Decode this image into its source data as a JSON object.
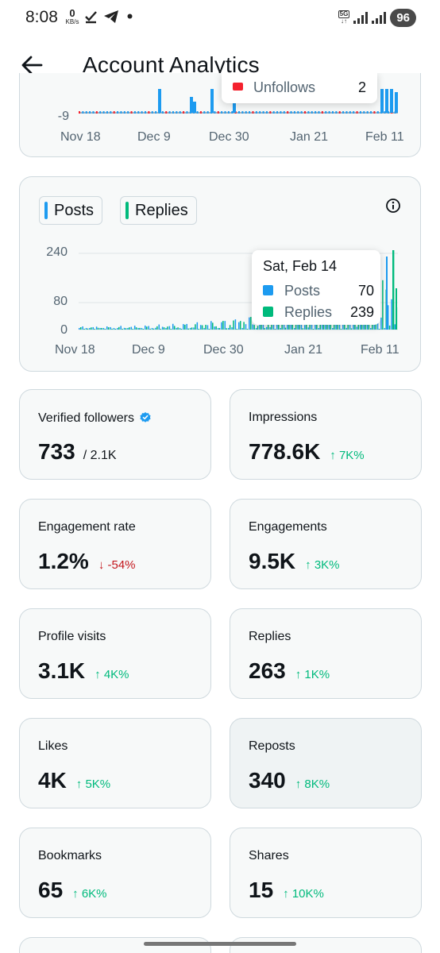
{
  "status_bar": {
    "time": "8:08",
    "net_speed_value": "0",
    "net_speed_unit": "KB/s",
    "network_type": "5G",
    "battery": "96"
  },
  "header": {
    "title": "Account Analytics"
  },
  "followers_chart": {
    "y_min_label": "-9",
    "x_labels": [
      "Nov 18",
      "Dec 9",
      "Dec 30",
      "Jan 21",
      "Feb 11"
    ],
    "tooltip_partial": "Unfollows",
    "tooltip_partial_value": "2"
  },
  "activity_chart": {
    "legend": [
      "Posts",
      "Replies"
    ],
    "colors": {
      "posts": "#1d9bf0",
      "replies": "#00ba7c"
    },
    "y_ticks": [
      "240",
      "80",
      "0"
    ],
    "x_labels": [
      "Nov 18",
      "Dec 9",
      "Dec 30",
      "Jan 21",
      "Feb 11"
    ],
    "tooltip": {
      "title": "Sat, Feb 14",
      "rows": [
        {
          "label": "Posts",
          "value": "70"
        },
        {
          "label": "Replies",
          "value": "239"
        }
      ]
    }
  },
  "metrics": [
    {
      "label": "Verified followers",
      "value": "733",
      "sub": "/ 2.1K",
      "change": "",
      "direction": ""
    },
    {
      "label": "Impressions",
      "value": "778.6K",
      "sub": "",
      "change": "↑ 7K%",
      "direction": "up"
    },
    {
      "label": "Engagement rate",
      "value": "1.2%",
      "sub": "",
      "change": "↓ -54%",
      "direction": "down"
    },
    {
      "label": "Engagements",
      "value": "9.5K",
      "sub": "",
      "change": "↑ 3K%",
      "direction": "up"
    },
    {
      "label": "Profile visits",
      "value": "3.1K",
      "sub": "",
      "change": "↑ 4K%",
      "direction": "up"
    },
    {
      "label": "Replies",
      "value": "263",
      "sub": "",
      "change": "↑ 1K%",
      "direction": "up"
    },
    {
      "label": "Likes",
      "value": "4K",
      "sub": "",
      "change": "↑ 5K%",
      "direction": "up"
    },
    {
      "label": "Reposts",
      "value": "340",
      "sub": "",
      "change": "↑ 8K%",
      "direction": "up"
    },
    {
      "label": "Bookmarks",
      "value": "65",
      "sub": "",
      "change": "↑ 6K%",
      "direction": "up"
    },
    {
      "label": "Shares",
      "value": "15",
      "sub": "",
      "change": "↑ 10K%",
      "direction": "up"
    }
  ]
}
